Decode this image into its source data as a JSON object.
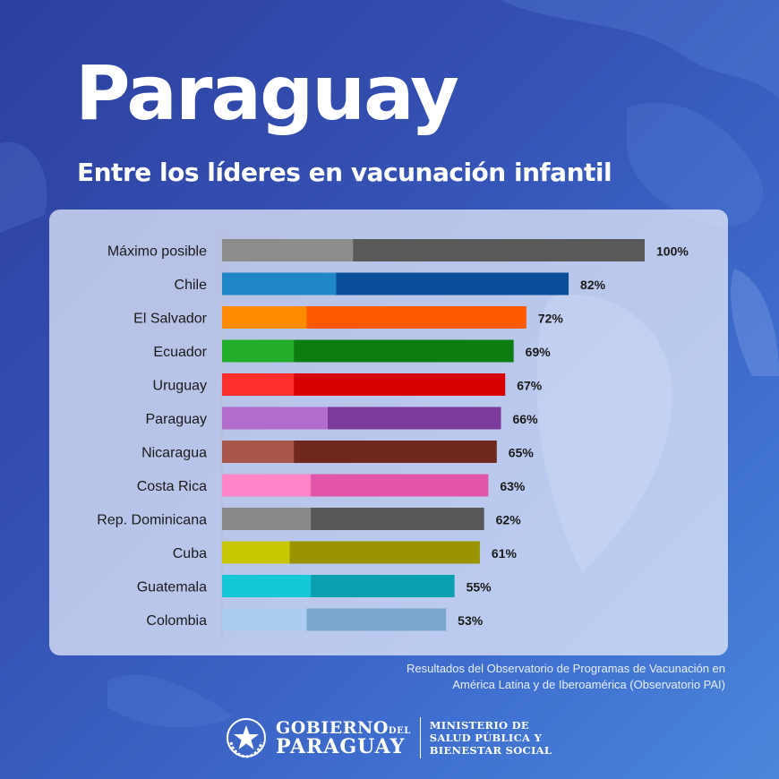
{
  "header": {
    "title": "Paraguay",
    "subtitle": "Entre los líderes en vacunación infantil"
  },
  "chart_data": {
    "type": "bar",
    "orientation": "horizontal",
    "categories": [
      "Máximo posible",
      "Chile",
      "El Salvador",
      "Ecuador",
      "Uruguay",
      "Paraguay",
      "Nicaragua",
      "Costa Rica",
      "Rep. Dominicana",
      "Cuba",
      "Guatemala",
      "Colombia"
    ],
    "values": [
      100,
      82,
      72,
      69,
      67,
      66,
      65,
      63,
      62,
      61,
      55,
      53
    ],
    "labels": [
      "100%",
      "82%",
      "72%",
      "69%",
      "67%",
      "66%",
      "65%",
      "63%",
      "62%",
      "61%",
      "55%",
      "53%"
    ],
    "segment_split": [
      31,
      27,
      20,
      17,
      17,
      25,
      17,
      21,
      21,
      16,
      21,
      20
    ],
    "colors_light": [
      "#8c8c8c",
      "#1f86c8",
      "#ff8c00",
      "#22ad2a",
      "#ff2f2f",
      "#b36ccc",
      "#a8564a",
      "#ff84c8",
      "#888888",
      "#c8c800",
      "#14c8d8",
      "#aacdf0"
    ],
    "colors_dark": [
      "#595959",
      "#0a4f9a",
      "#ff5a00",
      "#0d7d12",
      "#d60000",
      "#7c3a9c",
      "#70281e",
      "#e255a8",
      "#585858",
      "#9a9400",
      "#0aa0b0",
      "#7ba7cc"
    ],
    "xlim": [
      0,
      100
    ],
    "grid": false,
    "legend": "none"
  },
  "source": {
    "line1": "Resultados del Observatorio de Programas de Vacunación en",
    "line2": "América Latina y de Iberoamérica (Observatorio PAI)"
  },
  "footer": {
    "gov_line1": "GOBIERNO",
    "gov_del": "DEL",
    "gov_line2": "PARAGUAY",
    "ministry_line1": "MINISTERIO DE",
    "ministry_line2": "SALUD PÚBLICA Y",
    "ministry_line3": "BIENESTAR SOCIAL"
  }
}
